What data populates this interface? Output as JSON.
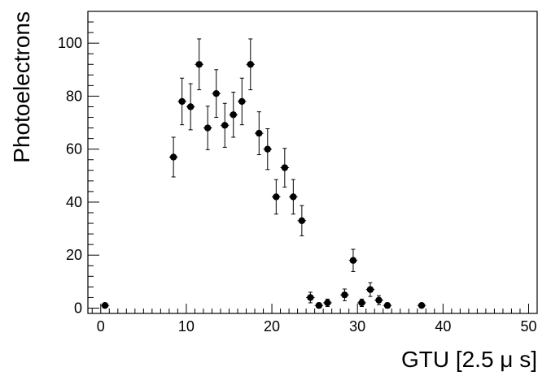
{
  "chart_data": {
    "type": "scatter",
    "xlabel": "GTU [2.5 μ s]",
    "ylabel": "Photoelectrons",
    "xlim": [
      -1.5,
      51
    ],
    "ylim": [
      -2,
      112
    ],
    "xticks": [
      0,
      10,
      20,
      30,
      40,
      50
    ],
    "yticks": [
      0,
      20,
      40,
      60,
      80,
      100
    ],
    "x_minor_step": 1,
    "y_minor_step": 4,
    "grid": false,
    "marker_color": "#000000",
    "series": [
      {
        "x_err": 0.5,
        "points": [
          {
            "x": 0.5,
            "y": 1,
            "err": 0
          },
          {
            "x": 8.5,
            "y": 57,
            "err": 7.5
          },
          {
            "x": 9.5,
            "y": 78,
            "err": 8.8
          },
          {
            "x": 10.5,
            "y": 76,
            "err": 8.7
          },
          {
            "x": 11.5,
            "y": 92,
            "err": 9.6
          },
          {
            "x": 12.5,
            "y": 68,
            "err": 8.2
          },
          {
            "x": 13.5,
            "y": 81,
            "err": 9
          },
          {
            "x": 14.5,
            "y": 69,
            "err": 8.3
          },
          {
            "x": 15.5,
            "y": 73,
            "err": 8.5
          },
          {
            "x": 16.5,
            "y": 78,
            "err": 8.8
          },
          {
            "x": 17.5,
            "y": 92,
            "err": 9.6
          },
          {
            "x": 18.5,
            "y": 66,
            "err": 8.1
          },
          {
            "x": 19.5,
            "y": 60,
            "err": 7.7
          },
          {
            "x": 20.5,
            "y": 42,
            "err": 6.5
          },
          {
            "x": 21.5,
            "y": 53,
            "err": 7.3
          },
          {
            "x": 22.5,
            "y": 42,
            "err": 6.5
          },
          {
            "x": 23.5,
            "y": 33,
            "err": 5.7
          },
          {
            "x": 24.5,
            "y": 4,
            "err": 2
          },
          {
            "x": 25.5,
            "y": 1,
            "err": 1
          },
          {
            "x": 26.5,
            "y": 2,
            "err": 1.4
          },
          {
            "x": 28.5,
            "y": 5,
            "err": 2.2
          },
          {
            "x": 29.5,
            "y": 18,
            "err": 4.2
          },
          {
            "x": 30.5,
            "y": 2,
            "err": 1.4
          },
          {
            "x": 31.5,
            "y": 7,
            "err": 2.6
          },
          {
            "x": 32.5,
            "y": 3,
            "err": 1.7
          },
          {
            "x": 33.5,
            "y": 1,
            "err": 1
          },
          {
            "x": 37.5,
            "y": 1,
            "err": 0.5
          }
        ]
      }
    ]
  }
}
